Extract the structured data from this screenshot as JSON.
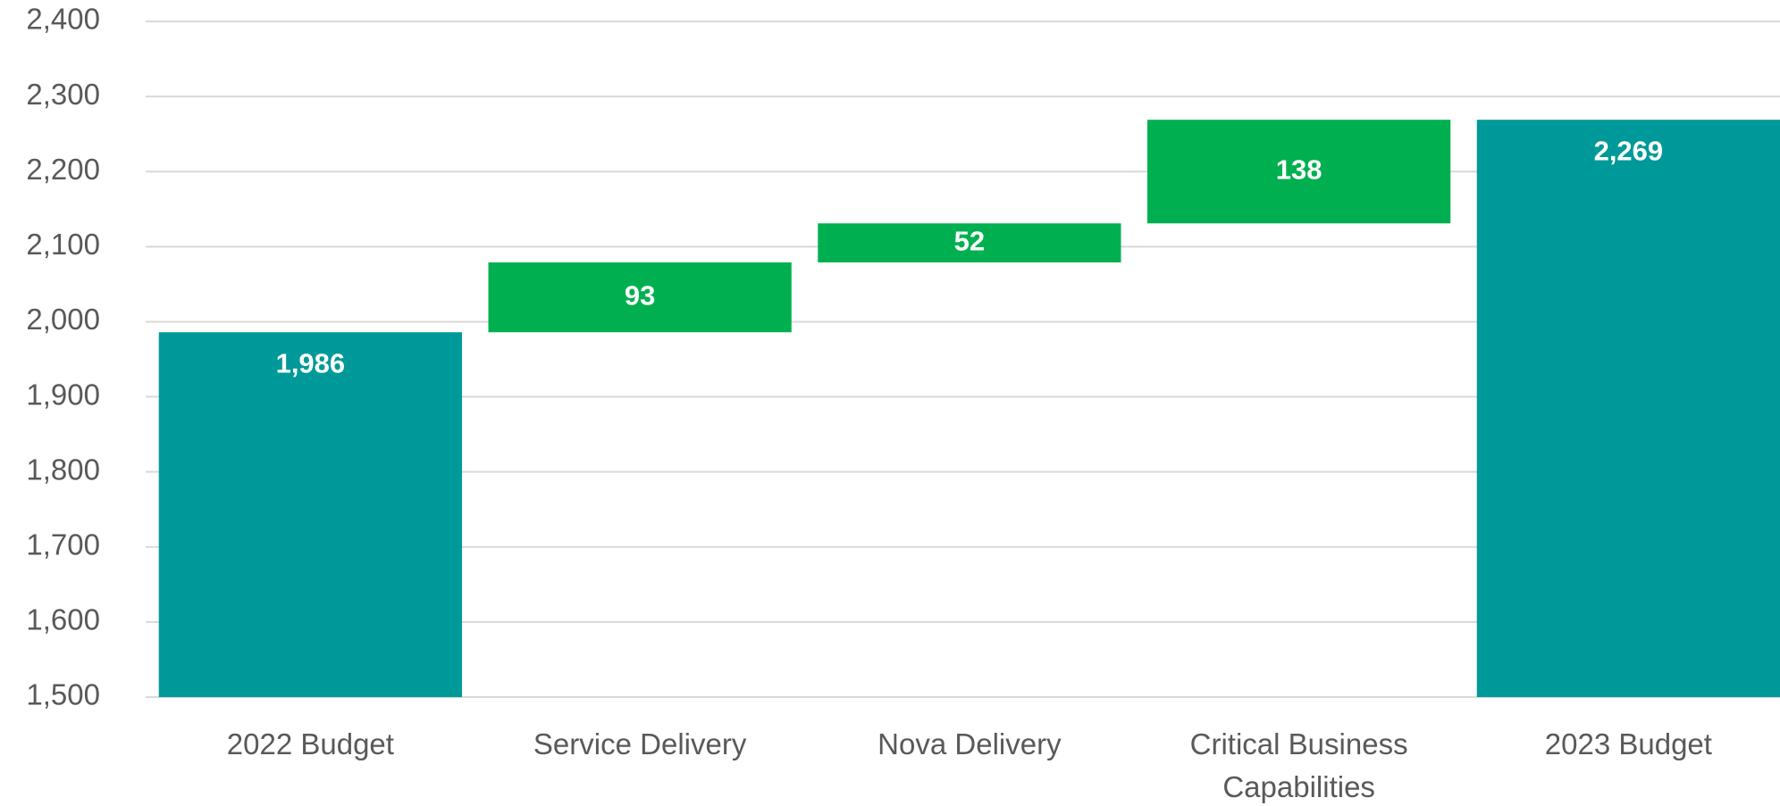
{
  "chart_data": {
    "type": "waterfall",
    "categories": [
      "2022 Budget",
      "Service Delivery",
      "Nova Delivery",
      "Critical Business Capabilities",
      "2023 Budget"
    ],
    "values": [
      1986,
      93,
      52,
      138,
      2269
    ],
    "value_labels": [
      "1,986",
      "93",
      "52",
      "138",
      "2,269"
    ],
    "is_total": [
      true,
      false,
      false,
      false,
      true
    ],
    "total_color": "#009999",
    "increase_color": "#00b050",
    "ylim": [
      1500,
      2400
    ],
    "yticks": [
      {
        "value": 1500,
        "label": "1,500"
      },
      {
        "value": 1600,
        "label": "1,600"
      },
      {
        "value": 1700,
        "label": "1,700"
      },
      {
        "value": 1800,
        "label": "1,800"
      },
      {
        "value": 1900,
        "label": "1,900"
      },
      {
        "value": 2000,
        "label": "2,000"
      },
      {
        "value": 2100,
        "label": "2,100"
      },
      {
        "value": 2200,
        "label": "2,200"
      },
      {
        "value": 2300,
        "label": "2,300"
      },
      {
        "value": 2400,
        "label": "2,400"
      }
    ],
    "grid": true
  }
}
